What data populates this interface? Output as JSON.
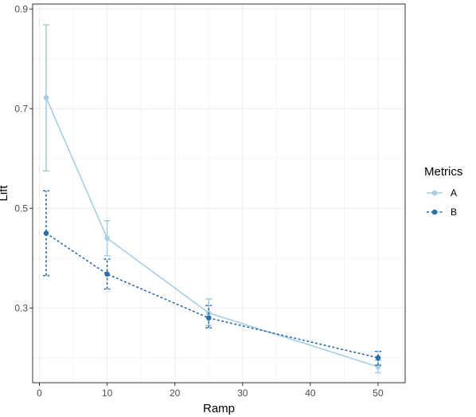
{
  "chart_data": {
    "type": "line",
    "xlabel": "Ramp",
    "ylabel": "Lift",
    "xlim": [
      -1,
      54
    ],
    "ylim": [
      0.15,
      0.91
    ],
    "x_ticks": [
      0,
      10,
      20,
      30,
      40,
      50
    ],
    "y_ticks": [
      0.3,
      0.5,
      0.7,
      0.9
    ],
    "grid": true,
    "legend": {
      "title": "Metrics",
      "position": "right"
    },
    "series": [
      {
        "name": "A",
        "color": "#a6cee3",
        "line_style": "solid",
        "points": [
          {
            "x": 1,
            "y": 0.722,
            "ymin": 0.575,
            "ymax": 0.868
          },
          {
            "x": 10,
            "y": 0.44,
            "ymin": 0.405,
            "ymax": 0.475
          },
          {
            "x": 25,
            "y": 0.29,
            "ymin": 0.265,
            "ymax": 0.318
          },
          {
            "x": 50,
            "y": 0.182,
            "ymin": 0.17,
            "ymax": 0.195
          }
        ]
      },
      {
        "name": "B",
        "color": "#2c6fa8",
        "line_style": "dashed",
        "points": [
          {
            "x": 1,
            "y": 0.45,
            "ymin": 0.365,
            "ymax": 0.535
          },
          {
            "x": 10,
            "y": 0.368,
            "ymin": 0.338,
            "ymax": 0.398
          },
          {
            "x": 25,
            "y": 0.28,
            "ymin": 0.26,
            "ymax": 0.305
          },
          {
            "x": 50,
            "y": 0.2,
            "ymin": 0.185,
            "ymax": 0.213
          }
        ]
      }
    ]
  }
}
